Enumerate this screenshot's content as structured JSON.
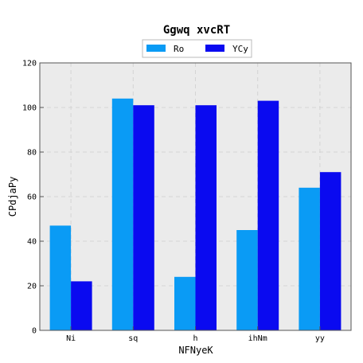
{
  "colors": {
    "plot_bg": "#ebebeb",
    "grid": "#d4d4d4",
    "axis": "#555555"
  },
  "chart_data": {
    "type": "bar",
    "title": "Ggwq  xvcRT",
    "xlabel": "NFNyeK",
    "ylabel": "CPdjaPy",
    "categories": [
      "Ni",
      "sq",
      "h",
      "ihNm",
      "yy"
    ],
    "series": [
      {
        "name": "Ro",
        "color": "#0a9bf5",
        "values": [
          47,
          104,
          24,
          45,
          64
        ]
      },
      {
        "name": "YCy",
        "color": "#0a0af0",
        "values": [
          22,
          101,
          101,
          103,
          71
        ]
      }
    ],
    "ylim": [
      0,
      120
    ],
    "yticks": [
      0,
      20,
      40,
      60,
      80,
      100,
      120
    ],
    "grid": true,
    "legend_position": "top-center"
  }
}
